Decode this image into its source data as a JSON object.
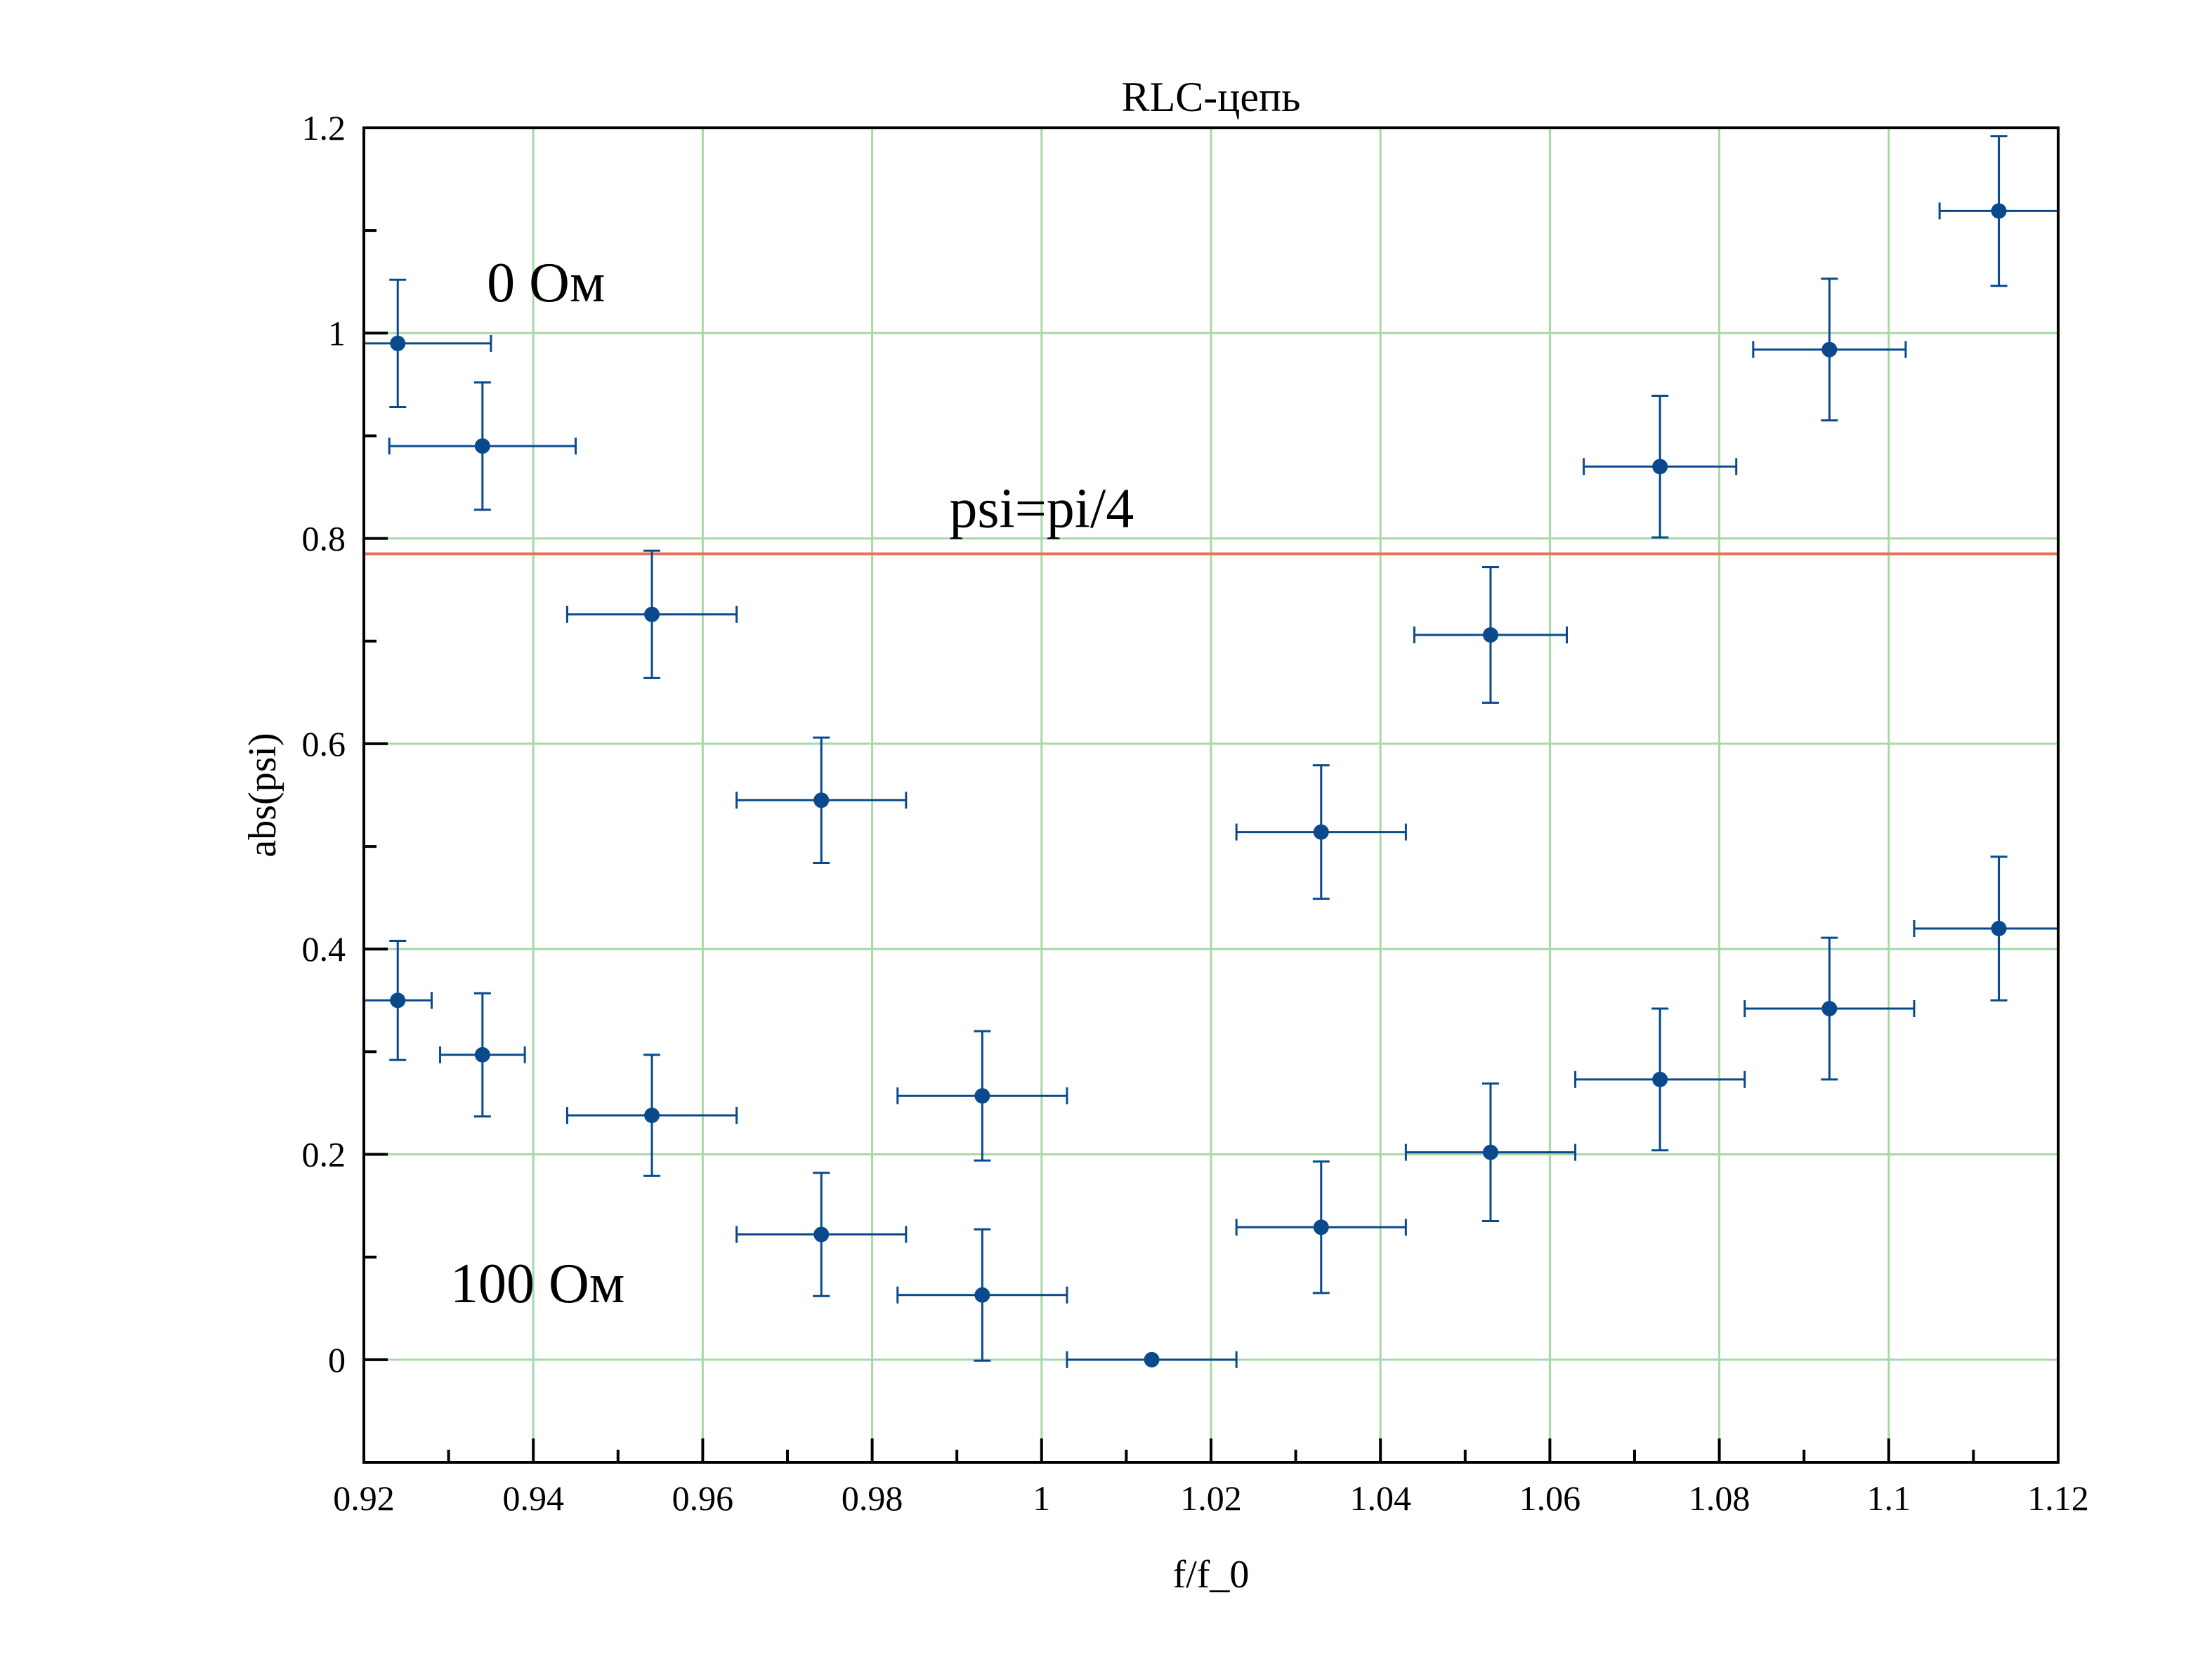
{
  "chart_data": {
    "type": "scatter",
    "title": "RLC-цепь",
    "xlabel": "f/f_0",
    "ylabel": "abs(psi)",
    "xlim": [
      0.92,
      1.12
    ],
    "ylim": [
      -0.1,
      1.2
    ],
    "x_ticks": [
      "0.92",
      "0.94",
      "0.96",
      "0.98",
      "1",
      "1.02",
      "1.04",
      "1.06",
      "1.08",
      "1.1",
      "1.12"
    ],
    "y_ticks": [
      "0",
      "0.2",
      "0.4",
      "0.6",
      "0.8",
      "1",
      "1.2"
    ],
    "grid": true,
    "marker_color": "#0a4a8c",
    "grid_color": "#a8d8a8",
    "reference_line": {
      "y": 0.785,
      "label": "psi=pi/4",
      "color": "#e8735a"
    },
    "annotations": [
      {
        "text": "0 Ом",
        "x": 0.9415,
        "y": 1.05
      },
      {
        "text": "100 Ом",
        "x": 0.9405,
        "y": 0.075
      }
    ],
    "series": [
      {
        "points": [
          {
            "x": 0.924,
            "y": 0.99,
            "xerr": 0.011,
            "yerr": 0.062
          },
          {
            "x": 0.934,
            "y": 0.89,
            "xerr": 0.011,
            "yerr": 0.062
          },
          {
            "x": 0.954,
            "y": 0.726,
            "xerr": 0.01,
            "yerr": 0.062
          },
          {
            "x": 0.974,
            "y": 0.545,
            "xerr": 0.01,
            "yerr": 0.061
          },
          {
            "x": 0.993,
            "y": 0.063,
            "xerr": 0.01,
            "yerr": 0.064
          },
          {
            "x": 1.013,
            "y": 0.0,
            "xerr": 0.01,
            "yerr": 0.0
          },
          {
            "x": 1.033,
            "y": 0.514,
            "xerr": 0.01,
            "yerr": 0.065
          },
          {
            "x": 1.053,
            "y": 0.706,
            "xerr": 0.009,
            "yerr": 0.066
          },
          {
            "x": 1.073,
            "y": 0.87,
            "xerr": 0.009,
            "yerr": 0.069
          },
          {
            "x": 1.093,
            "y": 0.984,
            "xerr": 0.009,
            "yerr": 0.069
          },
          {
            "x": 1.113,
            "y": 1.119,
            "xerr": 0.007,
            "yerr": 0.073
          }
        ]
      },
      {
        "points": [
          {
            "x": 0.924,
            "y": 0.35,
            "xerr": 0.004,
            "yerr": 0.058
          },
          {
            "x": 0.934,
            "y": 0.297,
            "xerr": 0.005,
            "yerr": 0.06
          },
          {
            "x": 0.954,
            "y": 0.238,
            "xerr": 0.01,
            "yerr": 0.059
          },
          {
            "x": 0.974,
            "y": 0.122,
            "xerr": 0.01,
            "yerr": 0.06
          },
          {
            "x": 0.993,
            "y": 0.257,
            "xerr": 0.01,
            "yerr": 0.063
          },
          {
            "x": 1.033,
            "y": 0.129,
            "xerr": 0.01,
            "yerr": 0.064
          },
          {
            "x": 1.053,
            "y": 0.202,
            "xerr": 0.01,
            "yerr": 0.067
          },
          {
            "x": 1.073,
            "y": 0.273,
            "xerr": 0.01,
            "yerr": 0.069
          },
          {
            "x": 1.093,
            "y": 0.342,
            "xerr": 0.01,
            "yerr": 0.069
          },
          {
            "x": 1.113,
            "y": 0.42,
            "xerr": 0.01,
            "yerr": 0.07
          }
        ]
      }
    ]
  }
}
